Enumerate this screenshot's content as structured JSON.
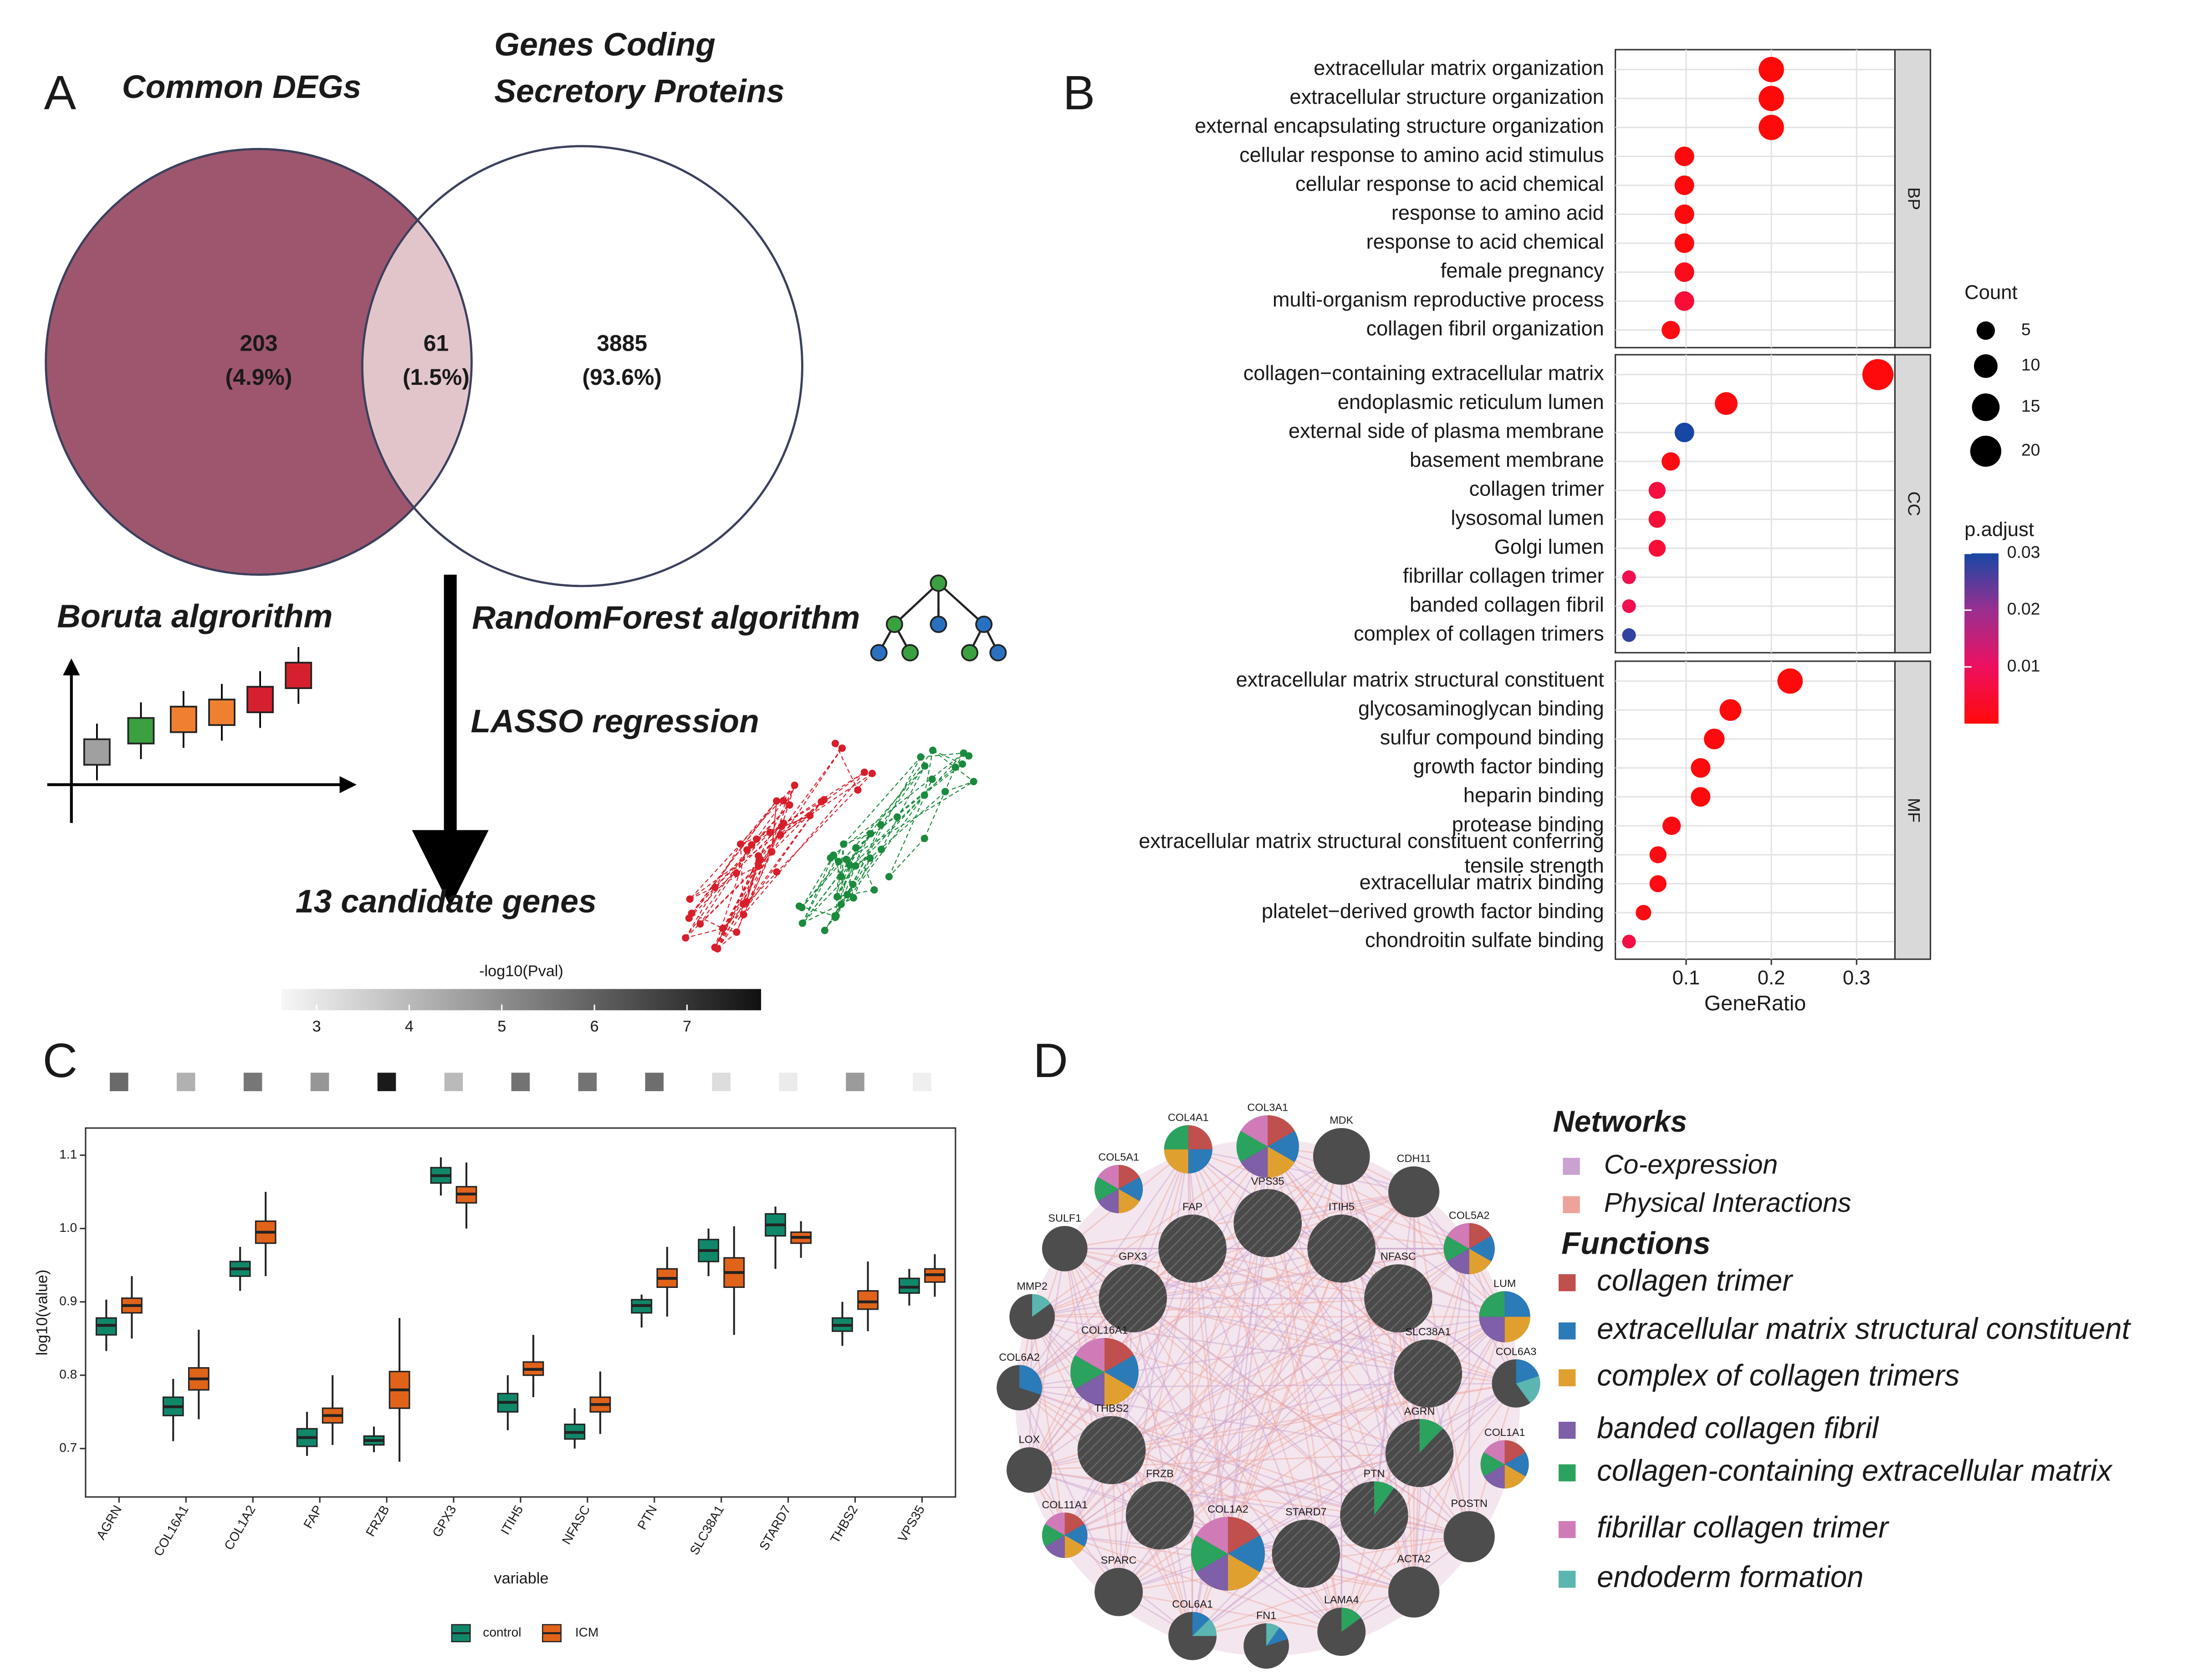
{
  "chart_data": [
    {
      "type": "venn",
      "label": "A",
      "set_a_title": "Common DEGs",
      "set_b_title_lines": [
        "Genes Coding",
        "Secretory Proteins"
      ],
      "counts": [
        203,
        61,
        3885
      ],
      "percent_labels": [
        "(4.9%)",
        "(1.5%)",
        "(93.6%)"
      ],
      "colors": [
        "#9e566f",
        "#e2c5cb",
        "#ffffff"
      ],
      "steps": [
        "Boruta algrorithm",
        "RandomForest algorithm",
        "LASSO regression"
      ],
      "result": "13 candidate genes"
    },
    {
      "type": "dotplot",
      "label": "B",
      "x_label": "GeneRatio",
      "xlim": [
        0.017,
        0.345
      ],
      "xticks": [
        0.1,
        0.2,
        0.3
      ],
      "grid": true,
      "size_title": "Count",
      "size_ticks": [
        5,
        10,
        15,
        20
      ],
      "color_title": "p.adjust",
      "clim": [
        0,
        0.03
      ],
      "cticks": [
        0.01,
        0.02,
        0.03
      ],
      "colorscale": [
        "#ff0a0a",
        "#ee1060",
        "#9a2f90",
        "#1747a4"
      ],
      "facets": [
        {
          "name": "BP",
          "categories": [
            "extracellular matrix organization",
            "extracellular structure organization",
            "external encapsulating structure organization",
            "cellular response to amino acid stimulus",
            "cellular response to acid chemical",
            "response to amino acid",
            "response to acid chemical",
            "female pregnancy",
            "multi-organism reproductive process",
            "collagen fibril organization"
          ],
          "x": [
            0.2,
            0.2,
            0.2,
            0.098,
            0.098,
            0.098,
            0.098,
            0.098,
            0.098,
            0.082
          ],
          "count": [
            12,
            12,
            12,
            6,
            6,
            6,
            6,
            6,
            6,
            5
          ],
          "p_adjust": [
            1e-05,
            1e-05,
            1e-05,
            0.0002,
            0.0003,
            0.0003,
            0.0004,
            0.002,
            0.005,
            0.001
          ]
        },
        {
          "name": "CC",
          "categories": [
            "collagen−containing extracellular matrix",
            "endoplasmic reticulum lumen",
            "external side of plasma membrane",
            "basement membrane",
            "collagen trimer",
            "lysosomal lumen",
            "Golgi lumen",
            "fibrillar collagen trimer",
            "banded collagen fibril",
            "complex of collagen trimers"
          ],
          "x": [
            0.325,
            0.147,
            0.098,
            0.082,
            0.066,
            0.066,
            0.066,
            0.033,
            0.033,
            0.033
          ],
          "count": [
            20,
            9,
            6,
            5,
            4,
            4,
            4,
            2,
            2,
            2
          ],
          "p_adjust": [
            1e-05,
            0.0005,
            0.03,
            0.001,
            0.006,
            0.005,
            0.005,
            0.008,
            0.008,
            0.028
          ]
        },
        {
          "name": "MF",
          "categories": [
            "extracellular matrix structural constituent",
            "glycosaminoglycan binding",
            "sulfur compound binding",
            "growth factor binding",
            "heparin binding",
            "protease binding",
            "extracellular matrix structural constituent conferring\ntensile strength",
            "extracellular matrix binding",
            "platelet−derived growth factor binding",
            "chondroitin sulfate binding"
          ],
          "x": [
            0.222,
            0.152,
            0.133,
            0.117,
            0.117,
            0.083,
            0.067,
            0.067,
            0.05,
            0.033
          ],
          "count": [
            12,
            8,
            7,
            6,
            6,
            5,
            4,
            4,
            3,
            2
          ],
          "p_adjust": [
            1e-05,
            0.0003,
            0.0005,
            0.0003,
            0.0003,
            0.001,
            0.001,
            0.001,
            0.001,
            0.007
          ]
        }
      ]
    },
    {
      "type": "boxplot",
      "label": "C",
      "x_label": "variable",
      "y_label": "log10(value)",
      "heat_title": "-log10(Pval)",
      "heat_lim": [
        2.62,
        7.8
      ],
      "heat_ticks": [
        3,
        4,
        5,
        6,
        7
      ],
      "categories": [
        "AGRN",
        "COL16A1",
        "COL1A2",
        "FAP",
        "FRZB",
        "GPX3",
        "ITIH5",
        "NFASC",
        "PTN",
        "SLC38A1",
        "STARD7",
        "THBS2",
        "VPS35"
      ],
      "heat_values": [
        5.8,
        4.2,
        5.5,
        4.8,
        7.6,
        4.0,
        5.6,
        5.6,
        5.7,
        3.2,
        2.9,
        4.7,
        2.8
      ],
      "ylim": [
        0.634,
        1.137
      ],
      "yticks": [
        0.7,
        0.8,
        0.9,
        {
          "value": 1,
          "label": "1.0"
        },
        1.1
      ],
      "series": [
        {
          "name": "control",
          "color": "#11876a",
          "boxes": [
            [
              0.833,
              0.855,
              0.868,
              0.878,
              0.903
            ],
            [
              0.71,
              0.745,
              0.757,
              0.77,
              0.795
            ],
            [
              0.915,
              0.935,
              0.945,
              0.955,
              0.975
            ],
            [
              0.69,
              0.703,
              0.715,
              0.727,
              0.75
            ],
            [
              0.695,
              0.705,
              0.711,
              0.717,
              0.73
            ],
            [
              1.045,
              1.062,
              1.072,
              1.083,
              1.097
            ],
            [
              0.725,
              0.75,
              0.763,
              0.775,
              0.8
            ],
            [
              0.7,
              0.713,
              0.722,
              0.733,
              0.755
            ],
            [
              0.865,
              0.885,
              0.895,
              0.903,
              0.91
            ],
            [
              0.935,
              0.955,
              0.97,
              0.985,
              1.0
            ],
            [
              0.945,
              0.99,
              1.005,
              1.02,
              1.03
            ],
            [
              0.84,
              0.86,
              0.868,
              0.878,
              0.9
            ],
            [
              0.895,
              0.912,
              0.92,
              0.932,
              0.945
            ]
          ]
        },
        {
          "name": "ICM",
          "color": "#e0631a",
          "boxes": [
            [
              0.85,
              0.885,
              0.895,
              0.905,
              0.935
            ],
            [
              0.74,
              0.78,
              0.795,
              0.81,
              0.862
            ],
            [
              0.935,
              0.98,
              0.995,
              1.01,
              1.05
            ],
            [
              0.705,
              0.735,
              0.745,
              0.755,
              0.8
            ],
            [
              0.682,
              0.755,
              0.78,
              0.805,
              0.878
            ],
            [
              1.0,
              1.035,
              1.047,
              1.057,
              1.09
            ],
            [
              0.77,
              0.8,
              0.808,
              0.818,
              0.855
            ],
            [
              0.72,
              0.75,
              0.76,
              0.77,
              0.805
            ],
            [
              0.88,
              0.92,
              0.932,
              0.945,
              0.975
            ],
            [
              0.855,
              0.92,
              0.94,
              0.96,
              1.003
            ],
            [
              0.96,
              0.98,
              0.988,
              0.995,
              1.01
            ],
            [
              0.86,
              0.89,
              0.9,
              0.915,
              0.955
            ],
            [
              0.907,
              0.927,
              0.937,
              0.945,
              0.965
            ]
          ]
        }
      ]
    },
    {
      "type": "network",
      "label": "D",
      "nodes": [
        "COL3A1",
        "MDK",
        "COL4A1",
        "CDH11",
        "COL5A1",
        "COL5A2",
        "SULF1",
        "LUM",
        "MMP2",
        "COL6A3",
        "COL6A2",
        "COL1A1",
        "LOX",
        "POSTN",
        "COL11A1",
        "ACTA2",
        "SPARC",
        "COL6A1",
        "FN1",
        "LAMA4",
        "FAP",
        "VPS35",
        "ITIH5",
        "GPX3",
        "NFASC",
        "COL16A1",
        "SLC38A1",
        "THBS2",
        "AGRN",
        "FRZB",
        "PTN",
        "COL1A2",
        "STARD7"
      ],
      "networks_title": "Networks",
      "networks": [
        {
          "name": "Co-expression",
          "color": "#c9a2cf"
        },
        {
          "name": "Physical Interactions",
          "color": "#eda39c"
        }
      ],
      "functions_title": "Functions",
      "functions": [
        {
          "name": "collagen trimer",
          "color": "#c0504d"
        },
        {
          "name": "extracellular matrix structural constituent",
          "color": "#2b7bb9"
        },
        {
          "name": "complex of collagen trimers",
          "color": "#e0a030"
        },
        {
          "name": "banded collagen fibril",
          "color": "#7e5fa8"
        },
        {
          "name": "collagen-containing extracellular matrix",
          "color": "#2ca25f"
        },
        {
          "name": "fibrillar collagen trimer",
          "color": "#d07bb8"
        },
        {
          "name": "endoderm formation",
          "color": "#5bb5b0"
        }
      ]
    }
  ]
}
